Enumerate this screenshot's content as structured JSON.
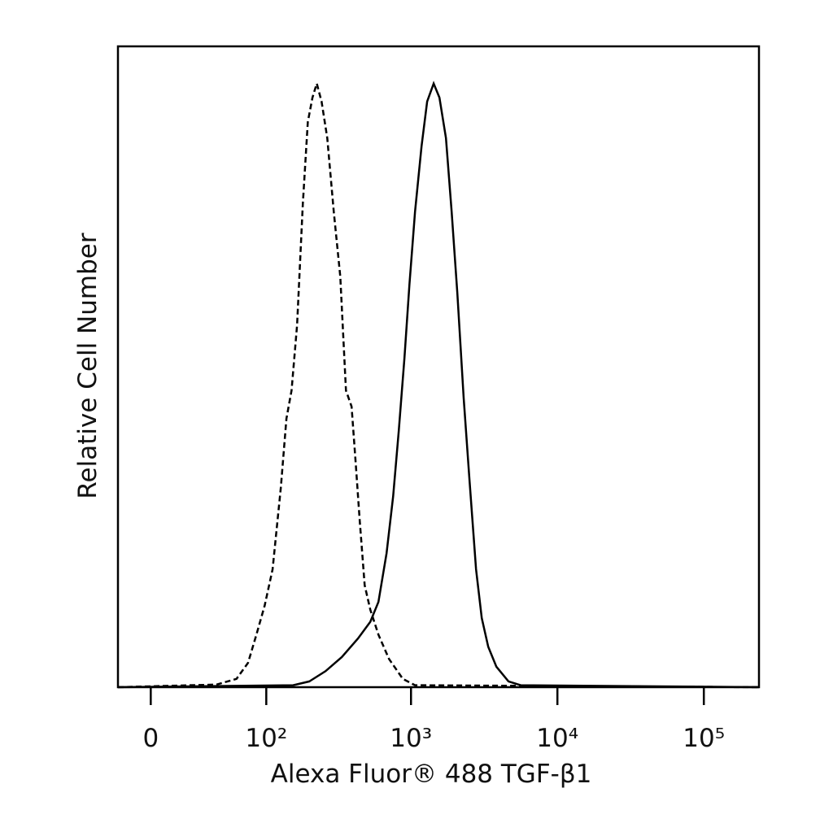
{
  "chart_data": {
    "type": "histogram-overlay",
    "x_label": "Alexa Fluor® 488 TGF-β1",
    "y_label": "Relative Cell Number",
    "xscale": "biexponential",
    "xlim": [
      -18,
      238000
    ],
    "ylim": [
      0,
      100
    ],
    "xticks": [
      0,
      {
        "value": 100,
        "label": "10²"
      },
      {
        "value": 1000,
        "label": "10³"
      },
      {
        "value": 10000,
        "label": "10⁴"
      },
      {
        "value": 100000,
        "label": "10⁵"
      }
    ],
    "series": [
      {
        "color": "#000000",
        "line_style": "dashed",
        "x": [
          -18,
          41,
          60,
          73.5,
          84.8,
          97.3,
          111,
          127,
          139,
          151,
          165,
          181,
          196,
          211,
          226,
          244,
          267,
          296,
          328,
          359,
          392,
          419,
          446,
          482,
          527,
          599,
          707,
          879,
          1066,
          238000
        ],
        "values": [
          0,
          0.4,
          1.3,
          3.8,
          8.2,
          12.7,
          18.4,
          31.1,
          41.9,
          46.3,
          56.5,
          75.5,
          88.2,
          92.0,
          94.2,
          91.4,
          85.7,
          74.2,
          64.1,
          46.3,
          43.8,
          34.9,
          26.0,
          15.9,
          12.1,
          8.2,
          4.4,
          1.3,
          0.3,
          0
        ]
      },
      {
        "color": "#000000",
        "line_style": "solid",
        "x": [
          -18,
          155,
          201,
          260,
          336,
          434,
          527,
          599,
          681,
          755,
          825,
          902,
          975,
          1066,
          1180,
          1290,
          1428,
          1564,
          1733,
          1894,
          2073,
          2290,
          2508,
          2781,
          3043,
          3369,
          3828,
          4636,
          5612,
          238000
        ],
        "values": [
          0,
          0.3,
          0.9,
          2.5,
          4.7,
          7.6,
          10.2,
          13.3,
          20.9,
          29.8,
          40.0,
          51.4,
          62.8,
          74.2,
          84.4,
          91.4,
          94.2,
          92.0,
          85.7,
          74.2,
          61.5,
          45.1,
          32.4,
          18.4,
          10.8,
          6.3,
          3.2,
          0.9,
          0.3,
          0
        ]
      }
    ]
  }
}
